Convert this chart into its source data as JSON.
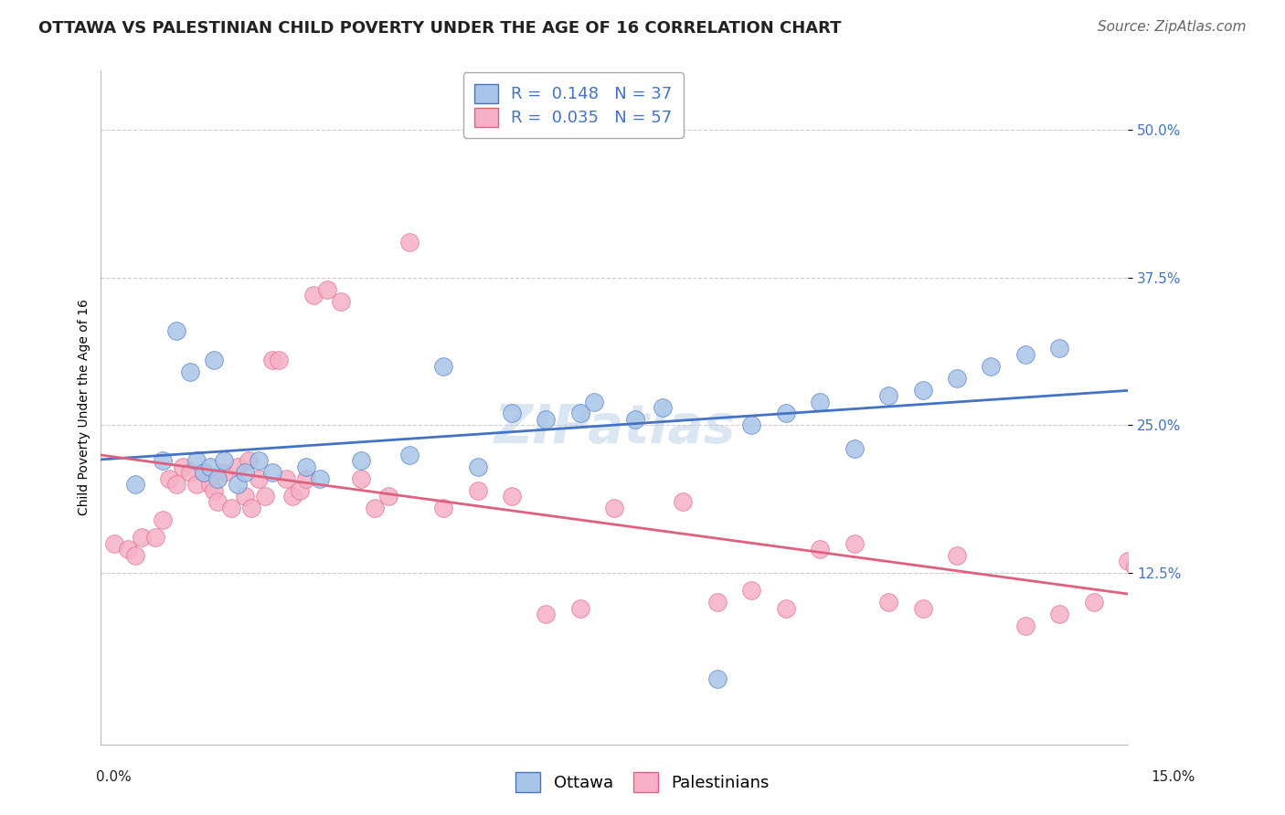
{
  "title": "OTTAWA VS PALESTINIAN CHILD POVERTY UNDER THE AGE OF 16 CORRELATION CHART",
  "source": "Source: ZipAtlas.com",
  "ylabel": "Child Poverty Under the Age of 16",
  "xlim": [
    0.0,
    15.0
  ],
  "ylim": [
    -2.0,
    55.0
  ],
  "watermark": "ZIPatlas",
  "ottawa_R": "0.148",
  "ottawa_N": "37",
  "palestinian_R": "0.035",
  "palestinian_N": "57",
  "ottawa_color": "#a8c4e8",
  "palestinian_color": "#f5b0c5",
  "trend_ottawa_color": "#4472c4",
  "trend_palestinian_color": "#e06080",
  "ottawa_x": [
    0.5,
    0.9,
    1.1,
    1.3,
    1.4,
    1.5,
    1.6,
    1.65,
    1.7,
    1.8,
    2.0,
    2.1,
    2.3,
    2.5,
    3.0,
    3.2,
    3.8,
    4.5,
    5.0,
    5.5,
    6.0,
    6.5,
    7.0,
    7.2,
    7.8,
    8.2,
    9.0,
    9.5,
    10.0,
    10.5,
    11.0,
    11.5,
    12.0,
    12.5,
    13.0,
    13.5,
    14.0
  ],
  "ottawa_y": [
    20.0,
    22.0,
    33.0,
    29.5,
    22.0,
    21.0,
    21.5,
    30.5,
    20.5,
    22.0,
    20.0,
    21.0,
    22.0,
    21.0,
    21.5,
    20.5,
    22.0,
    22.5,
    30.0,
    21.5,
    26.0,
    25.5,
    26.0,
    27.0,
    25.5,
    26.5,
    3.5,
    25.0,
    26.0,
    27.0,
    23.0,
    27.5,
    28.0,
    29.0,
    30.0,
    31.0,
    31.5
  ],
  "palestinian_x": [
    0.2,
    0.4,
    0.5,
    0.6,
    0.8,
    0.9,
    1.0,
    1.1,
    1.2,
    1.3,
    1.4,
    1.5,
    1.6,
    1.65,
    1.7,
    1.8,
    1.9,
    2.0,
    2.1,
    2.15,
    2.2,
    2.3,
    2.4,
    2.5,
    2.6,
    2.7,
    2.8,
    2.9,
    3.0,
    3.1,
    3.3,
    3.5,
    3.8,
    4.0,
    4.2,
    4.5,
    5.0,
    5.5,
    6.0,
    6.5,
    7.0,
    7.5,
    8.5,
    9.0,
    9.5,
    10.0,
    10.5,
    11.0,
    11.5,
    12.0,
    12.5,
    13.5,
    14.0,
    14.5,
    15.0,
    15.1,
    15.2
  ],
  "palestinian_y": [
    15.0,
    14.5,
    14.0,
    15.5,
    15.5,
    17.0,
    20.5,
    20.0,
    21.5,
    21.0,
    20.0,
    21.0,
    20.0,
    19.5,
    18.5,
    21.0,
    18.0,
    21.5,
    19.0,
    22.0,
    18.0,
    20.5,
    19.0,
    30.5,
    30.5,
    20.5,
    19.0,
    19.5,
    20.5,
    36.0,
    36.5,
    35.5,
    20.5,
    18.0,
    19.0,
    40.5,
    18.0,
    19.5,
    19.0,
    9.0,
    9.5,
    18.0,
    18.5,
    10.0,
    11.0,
    9.5,
    14.5,
    15.0,
    10.0,
    9.5,
    14.0,
    8.0,
    9.0,
    10.0,
    13.5,
    13.0,
    12.5
  ],
  "title_fontsize": 13,
  "axis_label_fontsize": 10,
  "tick_fontsize": 11,
  "legend_fontsize": 13,
  "source_fontsize": 11,
  "watermark_fontsize": 42,
  "background_color": "#ffffff",
  "grid_color": "#cccccc"
}
